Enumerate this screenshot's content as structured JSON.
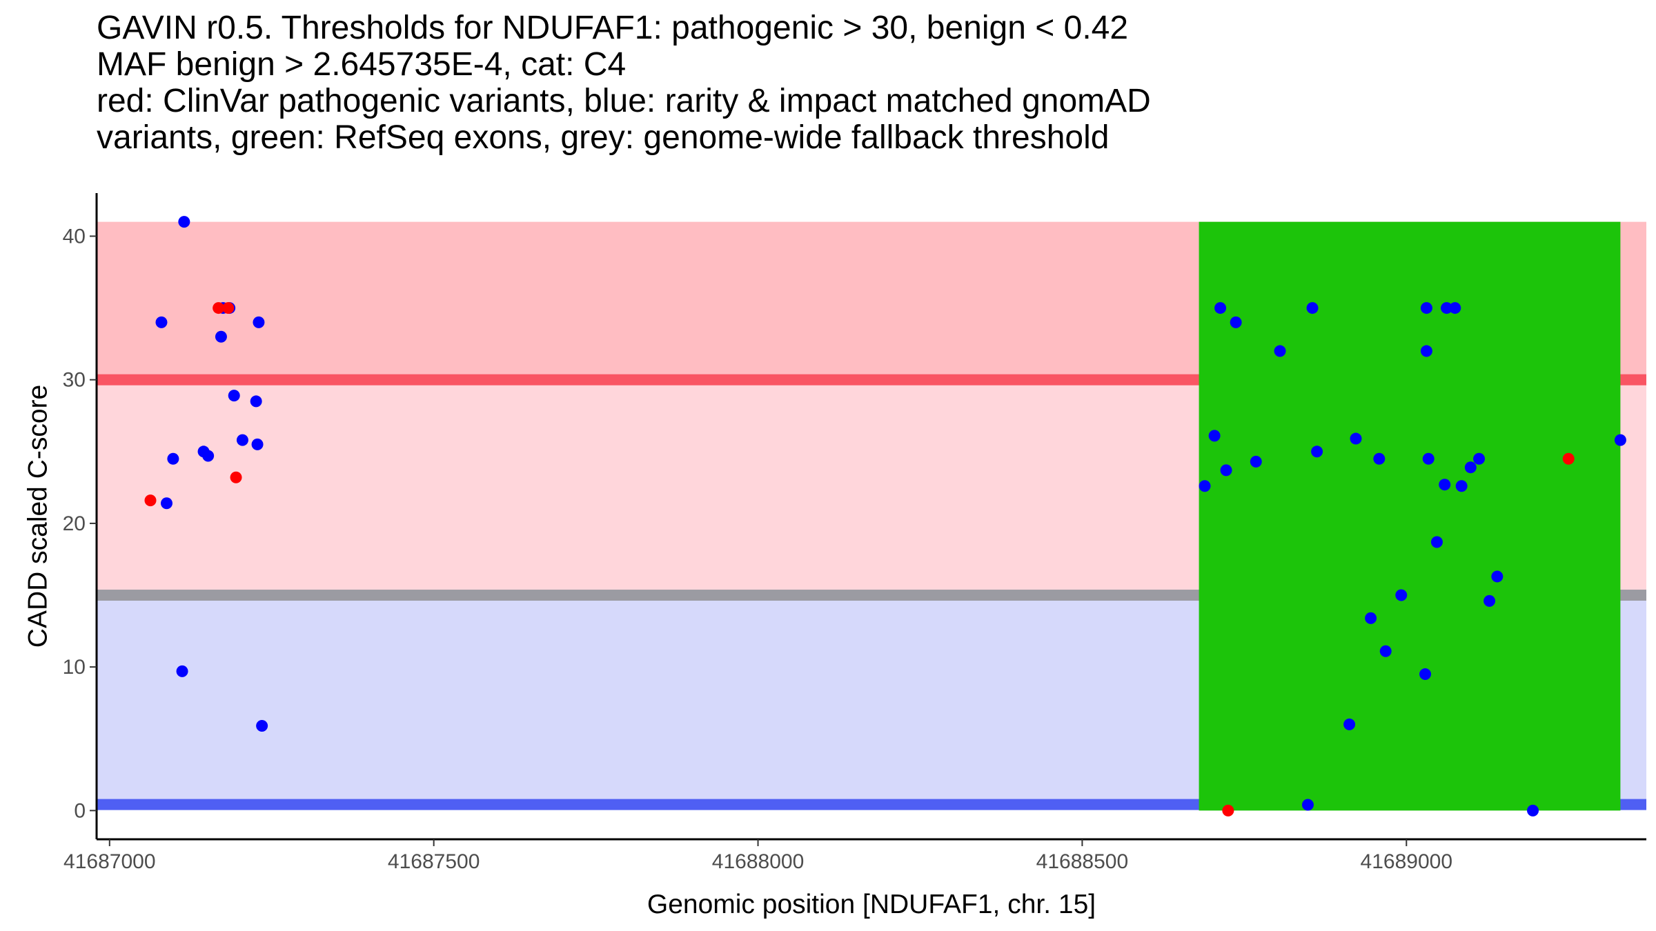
{
  "chart_data": {
    "type": "scatter",
    "title_lines": [
      "GAVIN r0.5. Thresholds for NDUFAF1: pathogenic > 30, benign < 0.42",
      "MAF benign > 2.645735E-4, cat: C4",
      "red: ClinVar pathogenic variants, blue: rarity & impact matched gnomAD",
      "variants, green: RefSeq exons, grey: genome-wide fallback threshold"
    ],
    "xlabel": "Genomic position [NDUFAF1, chr. 15]",
    "ylabel": "CADD scaled C-score",
    "xlim": [
      41686980,
      41689370
    ],
    "ylim": [
      -2,
      43
    ],
    "x_ticks": [
      41687000,
      41687500,
      41688000,
      41688500,
      41689000
    ],
    "x_tick_labels": [
      "41687000",
      "41687500",
      "41688000",
      "41688500",
      "41689000"
    ],
    "y_ticks": [
      0,
      10,
      20,
      30,
      40
    ],
    "y_tick_labels": [
      "0",
      "10",
      "20",
      "30",
      "40"
    ],
    "regions": [
      {
        "name": "pathogenic-zone",
        "ymin": 30,
        "ymax": 41,
        "color": "#ffbdc2"
      },
      {
        "name": "intermediate-zone",
        "ymin": 15,
        "ymax": 30,
        "color": "#ffd6db"
      },
      {
        "name": "benign-zone",
        "ymin": 0.42,
        "ymax": 15,
        "color": "#d6d9fb"
      }
    ],
    "threshold_lines": [
      {
        "name": "pathogenic-threshold",
        "y": 30,
        "color": "#f95563"
      },
      {
        "name": "fallback-threshold",
        "y": 15,
        "color": "#9b9ba2"
      },
      {
        "name": "benign-threshold",
        "y": 0.42,
        "color": "#4f5ff3"
      }
    ],
    "exons": [
      {
        "name": "refseq-exon",
        "xmin": 41688680,
        "xmax": 41689330,
        "color": "#1cc40a"
      }
    ],
    "series": [
      {
        "name": "gnomAD matched variants",
        "color": "#0000ff",
        "points": [
          [
            41687115,
            41.0
          ],
          [
            41687080,
            34.0
          ],
          [
            41687175,
            35.0
          ],
          [
            41687185,
            35.0
          ],
          [
            41687230,
            34.0
          ],
          [
            41687172,
            33.0
          ],
          [
            41687192,
            28.9
          ],
          [
            41687226,
            28.5
          ],
          [
            41687205,
            25.8
          ],
          [
            41687228,
            25.5
          ],
          [
            41687145,
            25.0
          ],
          [
            41687152,
            24.7
          ],
          [
            41687098,
            24.5
          ],
          [
            41687088,
            21.4
          ],
          [
            41687112,
            9.7
          ],
          [
            41687235,
            5.9
          ],
          [
            41688713,
            35.0
          ],
          [
            41688737,
            34.0
          ],
          [
            41688855,
            35.0
          ],
          [
            41689031,
            35.0
          ],
          [
            41689062,
            35.0
          ],
          [
            41689075,
            35.0
          ],
          [
            41688805,
            32.0
          ],
          [
            41689031,
            32.0
          ],
          [
            41688704,
            26.1
          ],
          [
            41688922,
            25.9
          ],
          [
            41688862,
            25.0
          ],
          [
            41688958,
            24.5
          ],
          [
            41689034,
            24.5
          ],
          [
            41689112,
            24.5
          ],
          [
            41688768,
            24.3
          ],
          [
            41688722,
            23.7
          ],
          [
            41689099,
            23.9
          ],
          [
            41688689,
            22.6
          ],
          [
            41689059,
            22.7
          ],
          [
            41689085,
            22.6
          ],
          [
            41689047,
            18.7
          ],
          [
            41689140,
            16.3
          ],
          [
            41688992,
            15.0
          ],
          [
            41689128,
            14.6
          ],
          [
            41688945,
            13.4
          ],
          [
            41688968,
            11.1
          ],
          [
            41689029,
            9.5
          ],
          [
            41688912,
            6.0
          ],
          [
            41688848,
            0.4
          ],
          [
            41689195,
            0.0
          ],
          [
            41689330,
            25.8
          ]
        ]
      },
      {
        "name": "ClinVar pathogenic variants",
        "color": "#ff0000",
        "points": [
          [
            41687168,
            35.0
          ],
          [
            41687183,
            35.0
          ],
          [
            41687063,
            21.6
          ],
          [
            41687195,
            23.2
          ],
          [
            41688725,
            0.0
          ],
          [
            41689250,
            24.5
          ]
        ]
      }
    ]
  }
}
